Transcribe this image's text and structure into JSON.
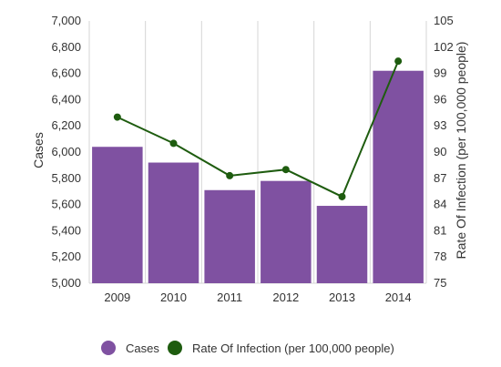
{
  "chart_data": {
    "type": "bar",
    "categories": [
      "2009",
      "2010",
      "2011",
      "2012",
      "2013",
      "2014"
    ],
    "series": [
      {
        "name": "Cases",
        "type": "bar",
        "axis": "left",
        "color": "#7f51a1",
        "values": [
          6040,
          5920,
          5710,
          5780,
          5590,
          6620
        ]
      },
      {
        "name": "Rate Of Infection (per 100,000 people)",
        "type": "line",
        "axis": "right",
        "color": "#1e5c0f",
        "values": [
          94,
          91,
          87.3,
          88,
          84.9,
          100.4
        ]
      }
    ],
    "ylabel": "Cases",
    "y2label": "Rate Of Infection (per 100,000 people)",
    "ylim": [
      5000,
      7000
    ],
    "y2lim": [
      75,
      105
    ],
    "yticks": [
      "7,000",
      "6,800",
      "6,600",
      "6,400",
      "6,200",
      "6,000",
      "5,800",
      "5,600",
      "5,400",
      "5,200",
      "5,000"
    ],
    "yticks_values": [
      7000,
      6800,
      6600,
      6400,
      6200,
      6000,
      5800,
      5600,
      5400,
      5200,
      5000
    ],
    "y2ticks": [
      "105",
      "102",
      "99",
      "96",
      "93",
      "90",
      "87",
      "84",
      "81",
      "78",
      "75"
    ],
    "y2ticks_values": [
      105,
      102,
      99,
      96,
      93,
      90,
      87,
      84,
      81,
      78,
      75
    ],
    "grid": "vertical",
    "legend": "bottom"
  }
}
